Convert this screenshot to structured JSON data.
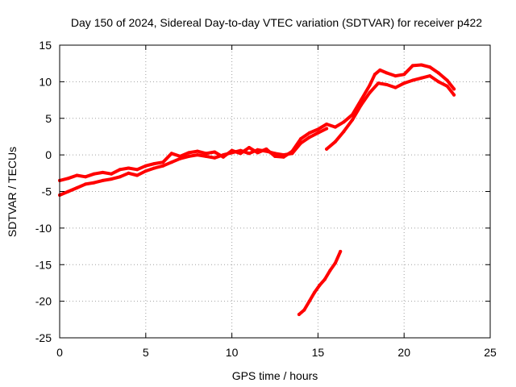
{
  "chart_data": {
    "type": "line",
    "title": "Day 150 of 2024, Sidereal Day-to-day VTEC variation (SDTVAR) for receiver p422",
    "xlabel": "GPS time / hours",
    "ylabel": "SDTVAR / TECUs",
    "xlim": [
      0,
      25
    ],
    "ylim": [
      -25,
      15
    ],
    "xticks": [
      0,
      5,
      10,
      15,
      20,
      25
    ],
    "yticks": [
      -25,
      -20,
      -15,
      -10,
      -5,
      0,
      5,
      10,
      15
    ],
    "grid": true,
    "color": "#ff0000",
    "series": [
      {
        "name": "trace-upper",
        "x": [
          0,
          0.5,
          1,
          1.5,
          2,
          2.5,
          3,
          3.5,
          4,
          4.5,
          5,
          5.5,
          6,
          6.5,
          7,
          7.5,
          8,
          8.5,
          9,
          9.5,
          10,
          10.5,
          11,
          11.5,
          12,
          12.5,
          13,
          13.5,
          14,
          14.5,
          15,
          15.5,
          16,
          16.5,
          17,
          17.5,
          18,
          18.3,
          18.6,
          19,
          19.5,
          20,
          20.5,
          21,
          21.5,
          22,
          22.5,
          22.9
        ],
        "y": [
          -3.5,
          -3.2,
          -2.8,
          -3.0,
          -2.6,
          -2.4,
          -2.6,
          -2.0,
          -1.8,
          -2.0,
          -1.5,
          -1.2,
          -1.0,
          0.2,
          -0.2,
          0.3,
          0.5,
          0.2,
          0.4,
          -0.3,
          0.6,
          0.2,
          1.0,
          0.3,
          0.8,
          -0.2,
          -0.3,
          0.5,
          2.2,
          3.0,
          3.5,
          4.2,
          3.8,
          4.5,
          5.5,
          7.5,
          9.5,
          11.0,
          11.6,
          11.2,
          10.8,
          11.0,
          12.2,
          12.3,
          12.0,
          11.2,
          10.2,
          9.0
        ]
      },
      {
        "name": "trace-lower",
        "x": [
          0,
          0.5,
          1,
          1.5,
          2,
          2.5,
          3,
          3.5,
          4,
          4.5,
          5,
          5.5,
          6,
          6.5,
          7,
          7.5,
          8,
          8.5,
          9,
          9.5,
          10,
          10.5,
          11,
          11.5,
          12,
          12.5,
          13,
          13.5,
          14,
          14.5,
          15,
          15.5
        ],
        "y": [
          -5.5,
          -5.0,
          -4.5,
          -4.0,
          -3.8,
          -3.5,
          -3.3,
          -3.0,
          -2.5,
          -2.8,
          -2.2,
          -1.8,
          -1.5,
          -1.0,
          -0.5,
          -0.2,
          0.0,
          -0.2,
          -0.4,
          0.0,
          0.3,
          0.6,
          0.2,
          0.7,
          0.5,
          0.2,
          0.0,
          0.2,
          1.6,
          2.4,
          3.0,
          3.6
        ]
      },
      {
        "name": "trace-segment-late",
        "x": [
          15.5,
          16,
          16.5,
          17,
          17.5,
          18,
          18.5,
          19,
          19.5,
          20,
          20.5,
          21,
          21.5,
          22,
          22.5,
          22.9
        ],
        "y": [
          0.8,
          1.8,
          3.2,
          4.8,
          6.8,
          8.5,
          9.8,
          9.6,
          9.2,
          9.8,
          10.2,
          10.5,
          10.8,
          10.0,
          9.4,
          8.2
        ]
      },
      {
        "name": "trace-segment-low",
        "x": [
          13.9,
          14.2,
          14.5,
          14.8,
          15.1,
          15.4,
          15.7,
          16.0,
          16.3
        ],
        "y": [
          -21.8,
          -21.2,
          -20.0,
          -18.8,
          -17.8,
          -17.0,
          -15.8,
          -14.8,
          -13.2
        ]
      }
    ]
  }
}
